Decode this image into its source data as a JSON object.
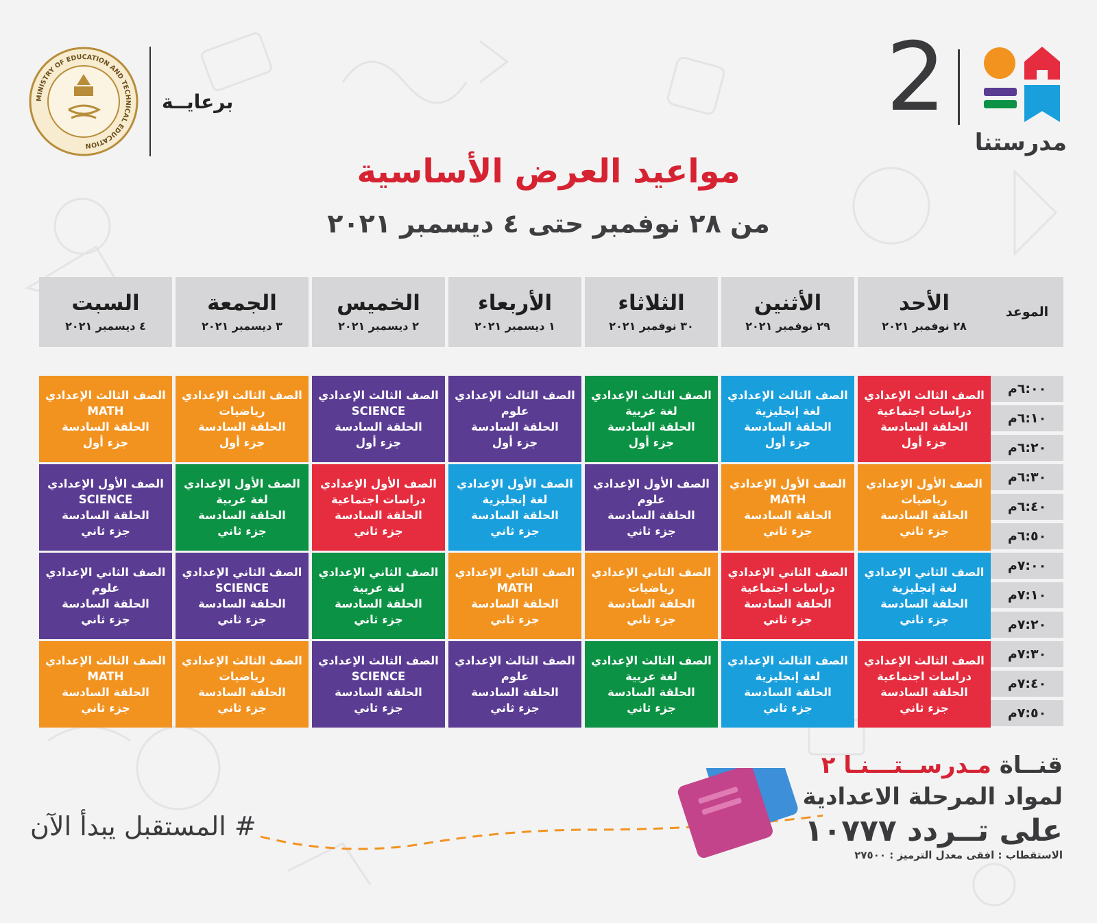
{
  "header": {
    "sponsor_label": "برعايــة",
    "channel_number": "2",
    "logo_name": "مدرستنا",
    "title": "مواعيد العرض الأساسية",
    "subtitle": "من ٢٨ نوفمبر حتى ٤ ديسمبر ٢٠٢١",
    "ministry_text": "MINISTRY OF EDUCATION AND TECHNICAL EDUCATION"
  },
  "colors": {
    "red": "#e52d3f",
    "blue": "#1a9fdd",
    "green": "#0c9244",
    "purple": "#5b3c93",
    "orange": "#f29320",
    "title_red": "#d62332"
  },
  "schedule": {
    "time_label": "الموعد",
    "days": [
      {
        "name": "الأحد",
        "date": "٢٨ نوفمبر ٢٠٢١"
      },
      {
        "name": "الأثنين",
        "date": "٢٩ نوفمبر ٢٠٢١"
      },
      {
        "name": "الثلاثاء",
        "date": "٣٠ نوفمبر ٢٠٢١"
      },
      {
        "name": "الأربعاء",
        "date": "١ ديسمبر ٢٠٢١"
      },
      {
        "name": "الخميس",
        "date": "٢ ديسمبر ٢٠٢١"
      },
      {
        "name": "الجمعة",
        "date": "٣ ديسمبر ٢٠٢١"
      },
      {
        "name": "السبت",
        "date": "٤ ديسمبر ٢٠٢١"
      }
    ],
    "times": [
      "٦:٠٠م",
      "٦:١٠م",
      "٦:٢٠م",
      "٦:٣٠م",
      "٦:٤٠م",
      "٦:٥٠م",
      "٧:٠٠م",
      "٧:١٠م",
      "٧:٢٠م",
      "٧:٣٠م",
      "٧:٤٠م",
      "٧:٥٠م"
    ],
    "slots": [
      [
        {
          "grade": "الصف الثالث الإعدادي",
          "subject": "دراسات اجتماعية",
          "cycle": "الحلقة السادسة",
          "part": "جزء أول",
          "color": "red"
        },
        {
          "grade": "الصف الثالث الإعدادي",
          "subject": "لغة إنجليزية",
          "cycle": "الحلقة السادسة",
          "part": "جزء أول",
          "color": "blue"
        },
        {
          "grade": "الصف الثالث الإعدادي",
          "subject": "لغة عربية",
          "cycle": "الحلقة السادسة",
          "part": "جزء أول",
          "color": "green"
        },
        {
          "grade": "الصف الثالث الإعدادي",
          "subject": "علوم",
          "cycle": "الحلقة السادسة",
          "part": "جزء أول",
          "color": "purple"
        },
        {
          "grade": "الصف الثالث الإعدادي",
          "subject": "SCIENCE",
          "cycle": "الحلقة السادسة",
          "part": "جزء أول",
          "color": "purple"
        },
        {
          "grade": "الصف الثالث الإعدادي",
          "subject": "رياضيات",
          "cycle": "الحلقة السادسة",
          "part": "جزء أول",
          "color": "orange"
        },
        {
          "grade": "الصف الثالث الإعدادي",
          "subject": "MATH",
          "cycle": "الحلقة السادسة",
          "part": "جزء أول",
          "color": "orange"
        }
      ],
      [
        {
          "grade": "الصف الأول الإعدادي",
          "subject": "رياضيات",
          "cycle": "الحلقة السادسة",
          "part": "جزء ثاني",
          "color": "orange"
        },
        {
          "grade": "الصف الأول الإعدادي",
          "subject": "MATH",
          "cycle": "الحلقة السادسة",
          "part": "جزء ثاني",
          "color": "orange"
        },
        {
          "grade": "الصف الأول الإعدادي",
          "subject": "علوم",
          "cycle": "الحلقة السادسة",
          "part": "جزء ثاني",
          "color": "purple"
        },
        {
          "grade": "الصف الأول الإعدادي",
          "subject": "لغة إنجليزية",
          "cycle": "الحلقة السادسة",
          "part": "جزء ثاني",
          "color": "blue"
        },
        {
          "grade": "الصف الأول الإعدادي",
          "subject": "دراسات اجتماعية",
          "cycle": "الحلقة السادسة",
          "part": "جزء ثاني",
          "color": "red"
        },
        {
          "grade": "الصف الأول الإعدادي",
          "subject": "لغة عربية",
          "cycle": "الحلقة السادسة",
          "part": "جزء ثاني",
          "color": "green"
        },
        {
          "grade": "الصف الأول الإعدادي",
          "subject": "SCIENCE",
          "cycle": "الحلقة السادسة",
          "part": "جزء ثاني",
          "color": "purple"
        }
      ],
      [
        {
          "grade": "الصف الثاني الإعدادي",
          "subject": "لغة إنجليزية",
          "cycle": "الحلقة السادسة",
          "part": "جزء ثاني",
          "color": "blue"
        },
        {
          "grade": "الصف الثاني الإعدادي",
          "subject": "دراسات اجتماعية",
          "cycle": "الحلقة السادسة",
          "part": "جزء ثاني",
          "color": "red"
        },
        {
          "grade": "الصف الثاني الإعدادي",
          "subject": "رياضيات",
          "cycle": "الحلقة السادسة",
          "part": "جزء ثاني",
          "color": "orange"
        },
        {
          "grade": "الصف الثاني الإعدادي",
          "subject": "MATH",
          "cycle": "الحلقة السادسة",
          "part": "جزء ثاني",
          "color": "orange"
        },
        {
          "grade": "الصف الثاني الإعدادي",
          "subject": "لغة عربية",
          "cycle": "الحلقة السادسة",
          "part": "جزء ثاني",
          "color": "green"
        },
        {
          "grade": "الصف الثاني الإعدادي",
          "subject": "SCIENCE",
          "cycle": "الحلقة السادسة",
          "part": "جزء ثاني",
          "color": "purple"
        },
        {
          "grade": "الصف الثاني الإعدادي",
          "subject": "علوم",
          "cycle": "الحلقة السادسة",
          "part": "جزء ثاني",
          "color": "purple"
        }
      ],
      [
        {
          "grade": "الصف الثالث الإعدادي",
          "subject": "دراسات اجتماعية",
          "cycle": "الحلقة السادسة",
          "part": "جزء ثاني",
          "color": "red"
        },
        {
          "grade": "الصف الثالث الإعدادي",
          "subject": "لغة إنجليزية",
          "cycle": "الحلقة السادسة",
          "part": "جزء ثاني",
          "color": "blue"
        },
        {
          "grade": "الصف الثالث الإعدادي",
          "subject": "لغة عربية",
          "cycle": "الحلقة السادسة",
          "part": "جزء ثاني",
          "color": "green"
        },
        {
          "grade": "الصف الثالث الإعدادي",
          "subject": "علوم",
          "cycle": "الحلقة السادسة",
          "part": "جزء ثاني",
          "color": "purple"
        },
        {
          "grade": "الصف الثالث الإعدادي",
          "subject": "SCIENCE",
          "cycle": "الحلقة السادسة",
          "part": "جزء ثاني",
          "color": "purple"
        },
        {
          "grade": "الصف الثالث الإعدادي",
          "subject": "رياضيات",
          "cycle": "الحلقة السادسة",
          "part": "جزء ثاني",
          "color": "orange"
        },
        {
          "grade": "الصف الثالث الإعدادي",
          "subject": "MATH",
          "cycle": "الحلقة السادسة",
          "part": "جزء ثاني",
          "color": "orange"
        }
      ]
    ]
  },
  "footer": {
    "channel_prefix": "قنــاة",
    "channel_brand": "مـدرســتـــنـا ٢",
    "description": "لمواد المرحلة الاعدادية",
    "frequency": "على تــردد ١٠٧٧٧",
    "polarization": "الاستقطاب : افقى معدل الترميز : ٢٧٥٠٠",
    "slogan": "# المستقبل يبدأ الآن"
  }
}
